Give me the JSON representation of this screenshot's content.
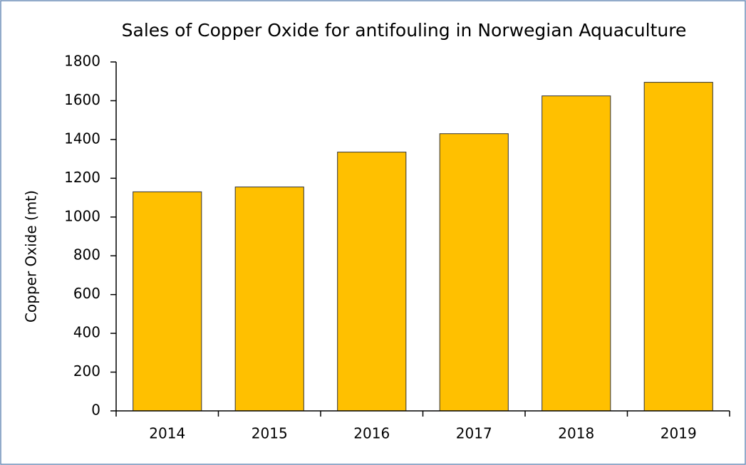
{
  "chart_data": {
    "type": "bar",
    "title": "Sales of Copper Oxide for antifouling in Norwegian Aquaculture",
    "y_label": "Copper Oxide (mt)",
    "categories": [
      "2014",
      "2015",
      "2016",
      "2017",
      "2018",
      "2019"
    ],
    "values": [
      1130,
      1155,
      1335,
      1430,
      1625,
      1695
    ],
    "color": "#ffc000",
    "ylim": [
      0,
      1800
    ],
    "yticks": [
      0,
      200,
      400,
      600,
      800,
      1000,
      1200,
      1400,
      1600,
      1800
    ],
    "grid": false
  }
}
